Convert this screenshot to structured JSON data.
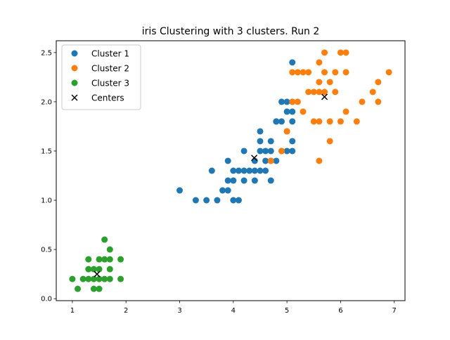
{
  "chart_data": {
    "type": "scatter",
    "title": "iris Clustering with 3 clusters. Run 2",
    "xlabel": "",
    "ylabel": "",
    "xlim": [
      0.7,
      7.2
    ],
    "ylim": [
      -0.02,
      2.62
    ],
    "x_ticks": [
      1,
      2,
      3,
      4,
      5,
      6,
      7
    ],
    "y_ticks": [
      0.0,
      0.5,
      1.0,
      1.5,
      2.0,
      2.5
    ],
    "x_tick_labels": [
      "1",
      "2",
      "3",
      "4",
      "5",
      "6",
      "7"
    ],
    "y_tick_labels": [
      "0.0",
      "0.5",
      "1.0",
      "1.5",
      "2.0",
      "2.5"
    ],
    "grid": false,
    "legend_position": "top-left",
    "series": [
      {
        "name": "Cluster 1",
        "color": "#1f77b4",
        "marker": "circle",
        "points": [
          [
            3.0,
            1.1
          ],
          [
            3.3,
            1.0
          ],
          [
            3.5,
            1.0
          ],
          [
            3.6,
            1.3
          ],
          [
            3.7,
            1.0
          ],
          [
            3.8,
            1.1
          ],
          [
            3.9,
            1.1
          ],
          [
            3.9,
            1.4
          ],
          [
            3.9,
            1.2
          ],
          [
            4.0,
            1.0
          ],
          [
            4.0,
            1.3
          ],
          [
            4.0,
            1.2
          ],
          [
            4.1,
            1.0
          ],
          [
            4.1,
            1.3
          ],
          [
            4.2,
            1.3
          ],
          [
            4.2,
            1.2
          ],
          [
            4.2,
            1.5
          ],
          [
            4.3,
            1.3
          ],
          [
            4.4,
            1.3
          ],
          [
            4.4,
            1.4
          ],
          [
            4.4,
            1.2
          ],
          [
            4.5,
            1.5
          ],
          [
            4.5,
            1.3
          ],
          [
            4.5,
            1.7
          ],
          [
            4.5,
            1.6
          ],
          [
            4.6,
            1.3
          ],
          [
            4.6,
            1.5
          ],
          [
            4.6,
            1.4
          ],
          [
            4.7,
            1.4
          ],
          [
            4.7,
            1.2
          ],
          [
            4.7,
            1.5
          ],
          [
            4.7,
            1.6
          ],
          [
            4.8,
            1.8
          ],
          [
            4.8,
            1.4
          ],
          [
            4.9,
            1.5
          ],
          [
            4.9,
            1.8
          ],
          [
            4.9,
            2.0
          ],
          [
            5.0,
            1.9
          ],
          [
            5.0,
            2.0
          ],
          [
            5.1,
            1.6
          ],
          [
            5.1,
            1.5
          ],
          [
            5.1,
            1.9
          ],
          [
            5.1,
            1.8
          ],
          [
            5.1,
            2.0
          ],
          [
            5.1,
            2.4
          ],
          [
            5.0,
            1.5
          ],
          [
            4.8,
            1.8
          ],
          [
            5.0,
            1.7
          ]
        ]
      },
      {
        "name": "Cluster 2",
        "color": "#ff7f0e",
        "marker": "circle",
        "points": [
          [
            4.7,
            1.4
          ],
          [
            4.9,
            1.5
          ],
          [
            5.0,
            1.7
          ],
          [
            5.1,
            2.3
          ],
          [
            5.1,
            2.0
          ],
          [
            5.2,
            2.3
          ],
          [
            5.2,
            2.0
          ],
          [
            5.3,
            2.3
          ],
          [
            5.3,
            1.9
          ],
          [
            5.4,
            2.3
          ],
          [
            5.4,
            2.1
          ],
          [
            5.5,
            2.1
          ],
          [
            5.5,
            1.8
          ],
          [
            5.6,
            2.4
          ],
          [
            5.6,
            2.1
          ],
          [
            5.6,
            2.2
          ],
          [
            5.6,
            1.8
          ],
          [
            5.6,
            1.4
          ],
          [
            5.7,
            2.5
          ],
          [
            5.7,
            2.3
          ],
          [
            5.7,
            2.1
          ],
          [
            5.8,
            2.2
          ],
          [
            5.8,
            1.8
          ],
          [
            5.8,
            1.6
          ],
          [
            5.9,
            2.3
          ],
          [
            5.9,
            2.1
          ],
          [
            6.0,
            2.5
          ],
          [
            6.0,
            1.8
          ],
          [
            6.1,
            2.5
          ],
          [
            6.1,
            2.3
          ],
          [
            6.1,
            1.9
          ],
          [
            6.3,
            1.8
          ],
          [
            6.4,
            2.0
          ],
          [
            6.6,
            2.1
          ],
          [
            6.7,
            2.2
          ],
          [
            6.7,
            2.0
          ],
          [
            6.9,
            2.3
          ]
        ]
      },
      {
        "name": "Cluster 3",
        "color": "#2ca02c",
        "marker": "circle",
        "points": [
          [
            1.0,
            0.2
          ],
          [
            1.1,
            0.1
          ],
          [
            1.2,
            0.2
          ],
          [
            1.3,
            0.2
          ],
          [
            1.3,
            0.3
          ],
          [
            1.3,
            0.4
          ],
          [
            1.4,
            0.2
          ],
          [
            1.4,
            0.3
          ],
          [
            1.4,
            0.1
          ],
          [
            1.5,
            0.2
          ],
          [
            1.5,
            0.1
          ],
          [
            1.5,
            0.3
          ],
          [
            1.5,
            0.4
          ],
          [
            1.6,
            0.2
          ],
          [
            1.6,
            0.4
          ],
          [
            1.6,
            0.6
          ],
          [
            1.7,
            0.2
          ],
          [
            1.7,
            0.3
          ],
          [
            1.7,
            0.4
          ],
          [
            1.7,
            0.5
          ],
          [
            1.9,
            0.2
          ],
          [
            1.9,
            0.4
          ]
        ]
      },
      {
        "name": "Centers",
        "color": "#000000",
        "marker": "x",
        "points": [
          [
            4.39,
            1.43
          ],
          [
            5.7,
            2.05
          ],
          [
            1.46,
            0.25
          ]
        ]
      }
    ]
  }
}
